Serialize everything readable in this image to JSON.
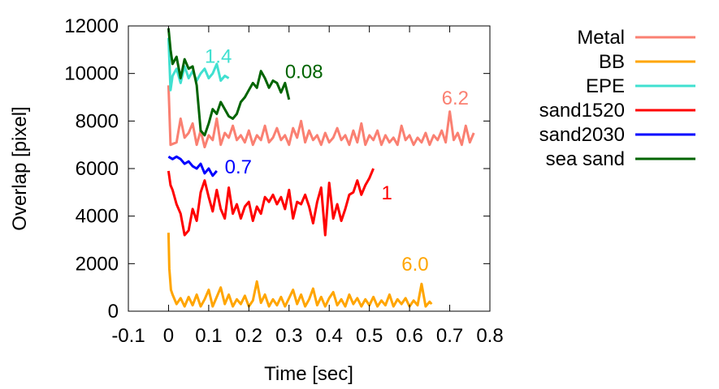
{
  "chart_data": {
    "type": "line",
    "title": "",
    "xlabel": "Time [sec]",
    "ylabel": "Overlap [pixel]",
    "xlim": [
      -0.1,
      0.8
    ],
    "ylim": [
      0,
      12000
    ],
    "xticks": [
      -0.1,
      0,
      0.1,
      0.2,
      0.3,
      0.4,
      0.5,
      0.6,
      0.7,
      0.8
    ],
    "xtick_labels": [
      "-0.1",
      "0",
      "0.1",
      "0.2",
      "0.3",
      "0.4",
      "0.5",
      "0.6",
      "0.7",
      "0.8"
    ],
    "yticks": [
      0,
      2000,
      4000,
      6000,
      8000,
      10000,
      12000
    ],
    "ytick_labels": [
      "0",
      "2000",
      "4000",
      "6000",
      "8000",
      "10000",
      "12000"
    ],
    "grid": false,
    "legend_position": "outside-right",
    "series": [
      {
        "name": "Metal",
        "color": "#fa8072",
        "points": [
          [
            0,
            9500
          ],
          [
            0.005,
            7000
          ],
          [
            0.02,
            7100
          ],
          [
            0.03,
            8100
          ],
          [
            0.04,
            7300
          ],
          [
            0.05,
            7500
          ],
          [
            0.06,
            7900
          ],
          [
            0.07,
            7000
          ],
          [
            0.08,
            7600
          ],
          [
            0.09,
            6900
          ],
          [
            0.1,
            7400
          ],
          [
            0.11,
            7200
          ],
          [
            0.12,
            8100
          ],
          [
            0.13,
            7000
          ],
          [
            0.14,
            7500
          ],
          [
            0.15,
            7300
          ],
          [
            0.16,
            7800
          ],
          [
            0.17,
            7200
          ],
          [
            0.18,
            7400
          ],
          [
            0.19,
            7100
          ],
          [
            0.2,
            7600
          ],
          [
            0.21,
            7000
          ],
          [
            0.22,
            7400
          ],
          [
            0.23,
            7200
          ],
          [
            0.24,
            7800
          ],
          [
            0.25,
            7100
          ],
          [
            0.26,
            7300
          ],
          [
            0.27,
            7700
          ],
          [
            0.28,
            7200
          ],
          [
            0.29,
            7400
          ],
          [
            0.3,
            7000
          ],
          [
            0.31,
            7700
          ],
          [
            0.32,
            7300
          ],
          [
            0.33,
            8000
          ],
          [
            0.34,
            7100
          ],
          [
            0.35,
            7600
          ],
          [
            0.36,
            7200
          ],
          [
            0.37,
            7400
          ],
          [
            0.38,
            7000
          ],
          [
            0.39,
            7500
          ],
          [
            0.4,
            7100
          ],
          [
            0.41,
            7300
          ],
          [
            0.42,
            7700
          ],
          [
            0.43,
            7200
          ],
          [
            0.44,
            7400
          ],
          [
            0.45,
            7000
          ],
          [
            0.46,
            7600
          ],
          [
            0.47,
            7100
          ],
          [
            0.48,
            7900
          ],
          [
            0.49,
            7000
          ],
          [
            0.5,
            7400
          ],
          [
            0.51,
            7200
          ],
          [
            0.52,
            7600
          ],
          [
            0.53,
            7000
          ],
          [
            0.54,
            7400
          ],
          [
            0.55,
            7100
          ],
          [
            0.56,
            7300
          ],
          [
            0.57,
            7000
          ],
          [
            0.58,
            7800
          ],
          [
            0.59,
            7200
          ],
          [
            0.6,
            7400
          ],
          [
            0.61,
            7000
          ],
          [
            0.62,
            7300
          ],
          [
            0.63,
            7100
          ],
          [
            0.64,
            7500
          ],
          [
            0.65,
            7000
          ],
          [
            0.66,
            7400
          ],
          [
            0.67,
            7200
          ],
          [
            0.68,
            7600
          ],
          [
            0.69,
            7100
          ],
          [
            0.7,
            8400
          ],
          [
            0.71,
            7200
          ],
          [
            0.72,
            7500
          ],
          [
            0.73,
            7000
          ],
          [
            0.74,
            7800
          ],
          [
            0.75,
            7100
          ],
          [
            0.76,
            7500
          ]
        ]
      },
      {
        "name": "BB",
        "color": "#ffa500",
        "points": [
          [
            0,
            3300
          ],
          [
            0.002,
            1800
          ],
          [
            0.006,
            900
          ],
          [
            0.01,
            700
          ],
          [
            0.02,
            300
          ],
          [
            0.03,
            550
          ],
          [
            0.04,
            200
          ],
          [
            0.05,
            600
          ],
          [
            0.06,
            250
          ],
          [
            0.07,
            700
          ],
          [
            0.08,
            200
          ],
          [
            0.09,
            500
          ],
          [
            0.1,
            900
          ],
          [
            0.11,
            200
          ],
          [
            0.12,
            600
          ],
          [
            0.13,
            1000
          ],
          [
            0.14,
            300
          ],
          [
            0.15,
            700
          ],
          [
            0.16,
            200
          ],
          [
            0.17,
            500
          ],
          [
            0.18,
            300
          ],
          [
            0.19,
            650
          ],
          [
            0.2,
            200
          ],
          [
            0.21,
            450
          ],
          [
            0.22,
            1250
          ],
          [
            0.23,
            350
          ],
          [
            0.24,
            700
          ],
          [
            0.25,
            200
          ],
          [
            0.26,
            500
          ],
          [
            0.27,
            250
          ],
          [
            0.28,
            600
          ],
          [
            0.29,
            200
          ],
          [
            0.3,
            550
          ],
          [
            0.31,
            900
          ],
          [
            0.32,
            300
          ],
          [
            0.33,
            700
          ],
          [
            0.34,
            200
          ],
          [
            0.35,
            500
          ],
          [
            0.36,
            950
          ],
          [
            0.37,
            250
          ],
          [
            0.38,
            600
          ],
          [
            0.39,
            200
          ],
          [
            0.4,
            550
          ],
          [
            0.41,
            800
          ],
          [
            0.42,
            250
          ],
          [
            0.43,
            500
          ],
          [
            0.44,
            200
          ],
          [
            0.45,
            700
          ],
          [
            0.46,
            300
          ],
          [
            0.47,
            550
          ],
          [
            0.48,
            200
          ],
          [
            0.49,
            500
          ],
          [
            0.5,
            250
          ],
          [
            0.51,
            600
          ],
          [
            0.52,
            200
          ],
          [
            0.53,
            450
          ],
          [
            0.54,
            250
          ],
          [
            0.55,
            700
          ],
          [
            0.56,
            200
          ],
          [
            0.57,
            500
          ],
          [
            0.58,
            300
          ],
          [
            0.59,
            550
          ],
          [
            0.6,
            200
          ],
          [
            0.61,
            450
          ],
          [
            0.62,
            250
          ],
          [
            0.63,
            1150
          ],
          [
            0.64,
            200
          ],
          [
            0.65,
            400
          ],
          [
            0.655,
            300
          ]
        ]
      },
      {
        "name": "EPE",
        "color": "#40e0d0",
        "points": [
          [
            0,
            11500
          ],
          [
            0.005,
            9300
          ],
          [
            0.01,
            9900
          ],
          [
            0.02,
            10200
          ],
          [
            0.03,
            9600
          ],
          [
            0.04,
            10300
          ],
          [
            0.05,
            9800
          ],
          [
            0.06,
            10100
          ],
          [
            0.07,
            9700
          ],
          [
            0.08,
            10000
          ],
          [
            0.09,
            10200
          ],
          [
            0.1,
            9800
          ],
          [
            0.11,
            10000
          ],
          [
            0.12,
            10400
          ],
          [
            0.13,
            9700
          ],
          [
            0.14,
            9900
          ],
          [
            0.15,
            9800
          ]
        ]
      },
      {
        "name": "sand1520",
        "color": "#ff0000",
        "points": [
          [
            0,
            5900
          ],
          [
            0.005,
            5300
          ],
          [
            0.01,
            5100
          ],
          [
            0.02,
            4500
          ],
          [
            0.03,
            4100
          ],
          [
            0.04,
            3200
          ],
          [
            0.05,
            3400
          ],
          [
            0.06,
            4300
          ],
          [
            0.07,
            3800
          ],
          [
            0.08,
            5000
          ],
          [
            0.09,
            5500
          ],
          [
            0.1,
            4800
          ],
          [
            0.11,
            4200
          ],
          [
            0.12,
            5100
          ],
          [
            0.13,
            4300
          ],
          [
            0.14,
            3900
          ],
          [
            0.15,
            5200
          ],
          [
            0.16,
            4100
          ],
          [
            0.17,
            4500
          ],
          [
            0.18,
            3900
          ],
          [
            0.19,
            4400
          ],
          [
            0.2,
            4600
          ],
          [
            0.21,
            3800
          ],
          [
            0.22,
            4400
          ],
          [
            0.23,
            4100
          ],
          [
            0.24,
            4800
          ],
          [
            0.25,
            4600
          ],
          [
            0.26,
            4900
          ],
          [
            0.27,
            4500
          ],
          [
            0.28,
            4800
          ],
          [
            0.29,
            4300
          ],
          [
            0.3,
            5100
          ],
          [
            0.31,
            3900
          ],
          [
            0.32,
            4600
          ],
          [
            0.33,
            4500
          ],
          [
            0.34,
            4900
          ],
          [
            0.35,
            4400
          ],
          [
            0.36,
            3700
          ],
          [
            0.37,
            4600
          ],
          [
            0.38,
            5200
          ],
          [
            0.39,
            3200
          ],
          [
            0.4,
            5400
          ],
          [
            0.41,
            3900
          ],
          [
            0.42,
            4500
          ],
          [
            0.43,
            3800
          ],
          [
            0.44,
            4300
          ],
          [
            0.45,
            4900
          ],
          [
            0.46,
            5000
          ],
          [
            0.47,
            5500
          ],
          [
            0.48,
            4900
          ],
          [
            0.49,
            5300
          ],
          [
            0.5,
            5600
          ],
          [
            0.51,
            6000
          ]
        ]
      },
      {
        "name": "sand2030",
        "color": "#0000ff",
        "points": [
          [
            0,
            6500
          ],
          [
            0.01,
            6400
          ],
          [
            0.02,
            6500
          ],
          [
            0.03,
            6400
          ],
          [
            0.04,
            6200
          ],
          [
            0.05,
            6300
          ],
          [
            0.06,
            6100
          ],
          [
            0.07,
            6000
          ],
          [
            0.08,
            6200
          ],
          [
            0.09,
            5800
          ],
          [
            0.1,
            6000
          ],
          [
            0.11,
            5700
          ],
          [
            0.12,
            5900
          ]
        ]
      },
      {
        "name": "sea sand",
        "color": "#006400",
        "points": [
          [
            0,
            11900
          ],
          [
            0.005,
            11000
          ],
          [
            0.01,
            10400
          ],
          [
            0.02,
            10700
          ],
          [
            0.03,
            9800
          ],
          [
            0.04,
            10600
          ],
          [
            0.05,
            10200
          ],
          [
            0.06,
            10300
          ],
          [
            0.07,
            9500
          ],
          [
            0.08,
            7600
          ],
          [
            0.09,
            7400
          ],
          [
            0.1,
            7900
          ],
          [
            0.11,
            8500
          ],
          [
            0.12,
            8300
          ],
          [
            0.13,
            8800
          ],
          [
            0.14,
            8500
          ],
          [
            0.15,
            8200
          ],
          [
            0.16,
            8100
          ],
          [
            0.17,
            8300
          ],
          [
            0.18,
            8800
          ],
          [
            0.19,
            9000
          ],
          [
            0.2,
            9300
          ],
          [
            0.21,
            9600
          ],
          [
            0.22,
            9400
          ],
          [
            0.23,
            10100
          ],
          [
            0.24,
            9800
          ],
          [
            0.25,
            9400
          ],
          [
            0.26,
            9700
          ],
          [
            0.27,
            9600
          ],
          [
            0.28,
            9200
          ],
          [
            0.29,
            9600
          ],
          [
            0.3,
            8900
          ]
        ]
      }
    ],
    "annotations": [
      {
        "text": "1.4",
        "x": 0.09,
        "y": 10450,
        "color": "#40e0d0"
      },
      {
        "text": "0.08",
        "x": 0.29,
        "y": 9800,
        "color": "#006400"
      },
      {
        "text": "6.2",
        "x": 0.68,
        "y": 8700,
        "color": "#fa8072"
      },
      {
        "text": "0.7",
        "x": 0.14,
        "y": 5800,
        "color": "#0000ff"
      },
      {
        "text": "1",
        "x": 0.53,
        "y": 4700,
        "color": "#ff0000"
      },
      {
        "text": "6.0",
        "x": 0.58,
        "y": 1700,
        "color": "#ffa500"
      }
    ]
  }
}
